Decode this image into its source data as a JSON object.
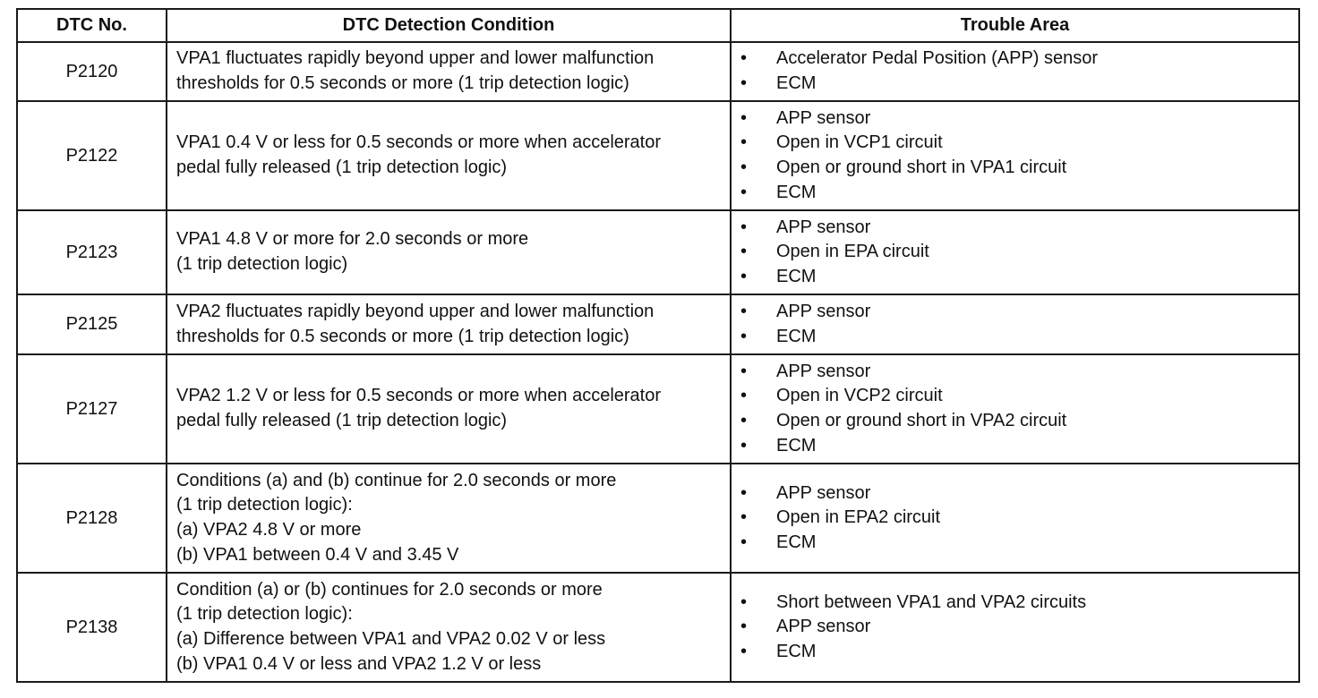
{
  "headers": {
    "code": "DTC No.",
    "condition": "DTC Detection Condition",
    "area": "Trouble Area"
  },
  "bullet": "•",
  "rows": [
    {
      "code": "P2120",
      "condition": [
        "VPA1 fluctuates rapidly beyond upper and lower malfunction",
        "thresholds for 0.5 seconds or more (1 trip detection logic)"
      ],
      "areas": [
        "Accelerator Pedal Position (APP) sensor",
        "ECM"
      ]
    },
    {
      "code": "P2122",
      "condition": [
        "VPA1 0.4 V or less for 0.5 seconds or more when accelerator",
        "pedal fully released (1 trip detection logic)"
      ],
      "areas": [
        "APP sensor",
        "Open in VCP1 circuit",
        "Open or ground short in VPA1 circuit",
        "ECM"
      ]
    },
    {
      "code": "P2123",
      "condition": [
        "VPA1 4.8 V or more for 2.0 seconds or more",
        "(1 trip detection logic)"
      ],
      "areas": [
        "APP sensor",
        "Open in EPA circuit",
        "ECM"
      ]
    },
    {
      "code": "P2125",
      "condition": [
        "VPA2 fluctuates rapidly beyond upper and lower malfunction",
        "thresholds for 0.5 seconds or more (1 trip detection logic)"
      ],
      "areas": [
        "APP sensor",
        "ECM"
      ]
    },
    {
      "code": "P2127",
      "condition": [
        "VPA2 1.2 V or less for 0.5 seconds or more when accelerator",
        "pedal fully released (1 trip detection logic)"
      ],
      "areas": [
        "APP sensor",
        "Open in VCP2 circuit",
        "Open or ground short in VPA2 circuit",
        "ECM"
      ]
    },
    {
      "code": "P2128",
      "condition": [
        "Conditions (a) and (b) continue for 2.0 seconds or more",
        "(1 trip detection logic):",
        "(a) VPA2 4.8 V or more",
        "(b) VPA1 between 0.4 V and 3.45 V"
      ],
      "areas": [
        "APP sensor",
        "Open in EPA2 circuit",
        "ECM"
      ]
    },
    {
      "code": "P2138",
      "condition": [
        "Condition (a) or (b) continues for 2.0 seconds or more",
        "(1 trip detection logic):",
        "(a) Difference between VPA1 and VPA2 0.02 V or less",
        "(b) VPA1 0.4 V or less and VPA2 1.2 V or less"
      ],
      "areas": [
        "Short between VPA1 and VPA2 circuits",
        "APP sensor",
        "ECM"
      ]
    }
  ]
}
